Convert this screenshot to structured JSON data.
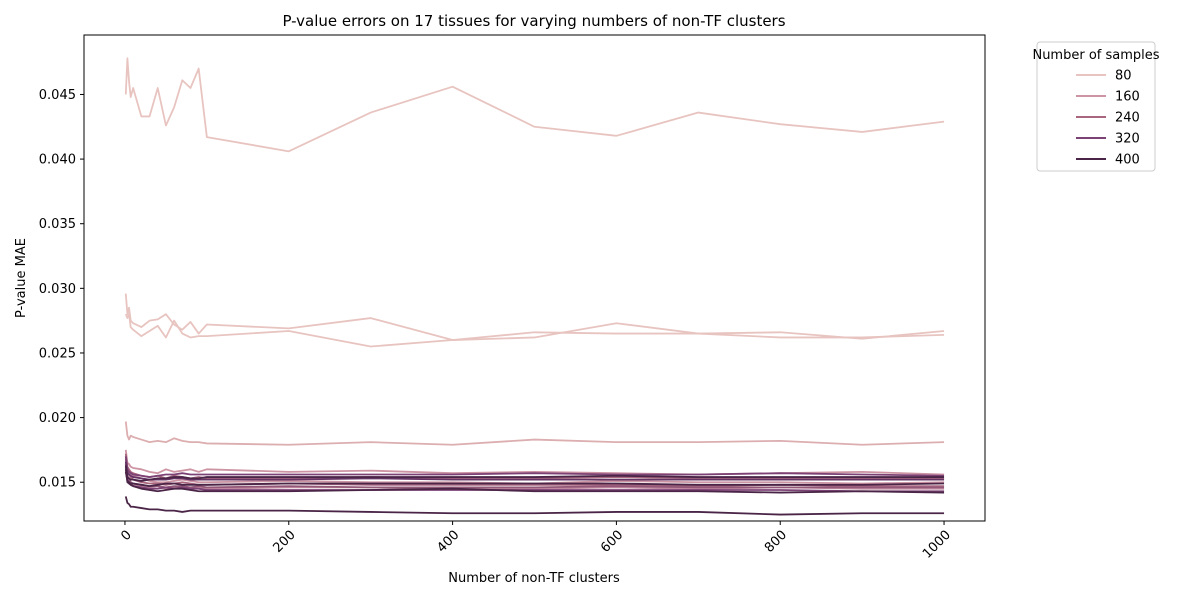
{
  "chart_data": {
    "type": "line",
    "title": "P-value errors on 17 tissues for varying numbers of non-TF clusters",
    "xlabel": "Number of non-TF clusters",
    "ylabel": "P-value MAE",
    "xlim": [
      -50,
      1050
    ],
    "ylim": [
      0.012,
      0.0496
    ],
    "x_ticks": [
      0,
      200,
      400,
      600,
      800,
      1000
    ],
    "y_ticks": [
      0.015,
      0.02,
      0.025,
      0.03,
      0.035,
      0.04,
      0.045
    ],
    "y_tick_labels": [
      "0.015",
      "0.020",
      "0.025",
      "0.030",
      "0.035",
      "0.040",
      "0.045"
    ],
    "x_tick_rotation": 45,
    "grid": false,
    "legend": {
      "title": "Number of samples",
      "placement": "outside-top-right",
      "entries": [
        {
          "label": "80",
          "color": "#e8c4c0"
        },
        {
          "label": "160",
          "color": "#cd94a4"
        },
        {
          "label": "240",
          "color": "#a8677f"
        },
        {
          "label": "320",
          "color": "#7d4275"
        },
        {
          "label": "400",
          "color": "#4a2547"
        }
      ]
    },
    "x": [
      1,
      3,
      5,
      7,
      10,
      20,
      30,
      40,
      50,
      60,
      70,
      80,
      90,
      100,
      200,
      300,
      400,
      500,
      600,
      700,
      800,
      900,
      1000
    ],
    "series": [
      {
        "color": "#e8c4c0",
        "values": [
          0.045,
          0.0478,
          0.046,
          0.0448,
          0.0455,
          0.0433,
          0.0433,
          0.0455,
          0.0426,
          0.044,
          0.0461,
          0.0455,
          0.047,
          0.0417,
          0.0406,
          0.0436,
          0.0456,
          0.0425,
          0.0418,
          0.0436,
          0.0427,
          0.0421,
          0.0429
        ]
      },
      {
        "color": "#e8c4c0",
        "values": [
          0.0296,
          0.028,
          0.0285,
          0.0275,
          0.0273,
          0.027,
          0.0275,
          0.0276,
          0.028,
          0.0272,
          0.0268,
          0.0274,
          0.0265,
          0.0272,
          0.0269,
          0.0277,
          0.026,
          0.0262,
          0.0273,
          0.0265,
          0.0266,
          0.0261,
          0.0267
        ]
      },
      {
        "color": "#e8c4c0",
        "values": [
          0.028,
          0.0277,
          0.028,
          0.027,
          0.0268,
          0.0263,
          0.0267,
          0.0271,
          0.0262,
          0.0275,
          0.0265,
          0.0262,
          0.0263,
          0.0263,
          0.0267,
          0.0255,
          0.026,
          0.0266,
          0.0265,
          0.0265,
          0.0262,
          0.0262,
          0.0264
        ]
      },
      {
        "color": "#dcaeb0",
        "values": [
          0.0197,
          0.0186,
          0.0183,
          0.0186,
          0.0185,
          0.0183,
          0.0181,
          0.0182,
          0.0181,
          0.0184,
          0.0182,
          0.0181,
          0.0181,
          0.018,
          0.0179,
          0.0181,
          0.0179,
          0.0183,
          0.0181,
          0.0181,
          0.0182,
          0.0179,
          0.0181
        ]
      },
      {
        "color": "#cd94a4",
        "values": [
          0.0175,
          0.0165,
          0.0164,
          0.0162,
          0.0161,
          0.016,
          0.0158,
          0.0157,
          0.016,
          0.0158,
          0.0159,
          0.016,
          0.0158,
          0.016,
          0.0158,
          0.0159,
          0.0157,
          0.0158,
          0.0157,
          0.0156,
          0.0157,
          0.0158,
          0.0156
        ]
      },
      {
        "color": "#cd94a4",
        "values": [
          0.017,
          0.016,
          0.0158,
          0.0157,
          0.0155,
          0.0153,
          0.0151,
          0.015,
          0.015,
          0.0151,
          0.0152,
          0.0151,
          0.015,
          0.015,
          0.0151,
          0.015,
          0.015,
          0.0149,
          0.0151,
          0.015,
          0.015,
          0.0149,
          0.015
        ]
      },
      {
        "color": "#c0899f",
        "values": [
          0.0165,
          0.0155,
          0.0153,
          0.015,
          0.0148,
          0.0147,
          0.0146,
          0.0147,
          0.0145,
          0.0146,
          0.0147,
          0.0145,
          0.0146,
          0.0145,
          0.0146,
          0.0146,
          0.0145,
          0.0145,
          0.0146,
          0.0145,
          0.0146,
          0.0145,
          0.0145
        ]
      },
      {
        "color": "#a8677f",
        "values": [
          0.0172,
          0.0162,
          0.016,
          0.0158,
          0.0157,
          0.0155,
          0.0154,
          0.0155,
          0.0153,
          0.0155,
          0.0154,
          0.0153,
          0.0154,
          0.0153,
          0.0153,
          0.0154,
          0.0153,
          0.0153,
          0.0154,
          0.0153,
          0.0153,
          0.0153,
          0.0153
        ]
      },
      {
        "color": "#a8677f",
        "values": [
          0.0168,
          0.0158,
          0.0156,
          0.0154,
          0.0152,
          0.015,
          0.0149,
          0.0149,
          0.0148,
          0.0149,
          0.015,
          0.0149,
          0.0148,
          0.0148,
          0.0149,
          0.0148,
          0.0148,
          0.0148,
          0.0148,
          0.0147,
          0.0148,
          0.0147,
          0.0147
        ]
      },
      {
        "color": "#935878",
        "values": [
          0.0164,
          0.0154,
          0.0152,
          0.015,
          0.0149,
          0.0148,
          0.0147,
          0.0147,
          0.0146,
          0.0147,
          0.0147,
          0.0146,
          0.0147,
          0.0146,
          0.0147,
          0.0146,
          0.0146,
          0.0146,
          0.0147,
          0.0146,
          0.0146,
          0.0146,
          0.0146
        ]
      },
      {
        "color": "#7d4275",
        "values": [
          0.017,
          0.016,
          0.0158,
          0.0157,
          0.0156,
          0.0155,
          0.0154,
          0.0155,
          0.0156,
          0.0156,
          0.0157,
          0.0156,
          0.0156,
          0.0156,
          0.0156,
          0.0156,
          0.0156,
          0.0157,
          0.0156,
          0.0156,
          0.0157,
          0.0156,
          0.0155
        ]
      },
      {
        "color": "#7d4275",
        "values": [
          0.0162,
          0.0152,
          0.015,
          0.0148,
          0.0147,
          0.0146,
          0.0145,
          0.0145,
          0.0146,
          0.0145,
          0.0146,
          0.0145,
          0.0145,
          0.0144,
          0.0144,
          0.0144,
          0.0144,
          0.0144,
          0.0144,
          0.0144,
          0.0144,
          0.0143,
          0.0143
        ]
      },
      {
        "color": "#643465",
        "values": [
          0.0166,
          0.0157,
          0.0156,
          0.0155,
          0.0154,
          0.0153,
          0.0152,
          0.0152,
          0.0152,
          0.0153,
          0.0153,
          0.0152,
          0.0152,
          0.0152,
          0.0152,
          0.0153,
          0.0152,
          0.0152,
          0.0152,
          0.0152,
          0.0152,
          0.0152,
          0.0152
        ]
      },
      {
        "color": "#4a2547",
        "values": [
          0.016,
          0.015,
          0.0149,
          0.0148,
          0.0147,
          0.0145,
          0.0144,
          0.0143,
          0.0144,
          0.0145,
          0.0145,
          0.0144,
          0.0143,
          0.0143,
          0.0143,
          0.0144,
          0.0145,
          0.0143,
          0.0143,
          0.0143,
          0.0142,
          0.0143,
          0.0142
        ]
      },
      {
        "color": "#4a2547",
        "values": [
          0.0163,
          0.0154,
          0.0153,
          0.0152,
          0.0152,
          0.0151,
          0.0152,
          0.0153,
          0.0153,
          0.0154,
          0.0154,
          0.0153,
          0.0153,
          0.0154,
          0.0154,
          0.0154,
          0.0154,
          0.0154,
          0.0155,
          0.0154,
          0.0154,
          0.0154,
          0.0154
        ]
      },
      {
        "color": "#4a2547",
        "values": [
          0.0158,
          0.0151,
          0.015,
          0.0149,
          0.0149,
          0.0148,
          0.0147,
          0.0148,
          0.0149,
          0.0149,
          0.0148,
          0.0148,
          0.0148,
          0.0148,
          0.0149,
          0.0149,
          0.0149,
          0.0149,
          0.0149,
          0.0148,
          0.0148,
          0.0148,
          0.0149
        ]
      },
      {
        "color": "#4a2547",
        "values": [
          0.0139,
          0.0134,
          0.0133,
          0.0131,
          0.0131,
          0.013,
          0.0129,
          0.0129,
          0.0128,
          0.0128,
          0.0127,
          0.0128,
          0.0128,
          0.0128,
          0.0128,
          0.0127,
          0.0126,
          0.0126,
          0.0127,
          0.0127,
          0.0125,
          0.0126,
          0.0126
        ]
      }
    ]
  }
}
